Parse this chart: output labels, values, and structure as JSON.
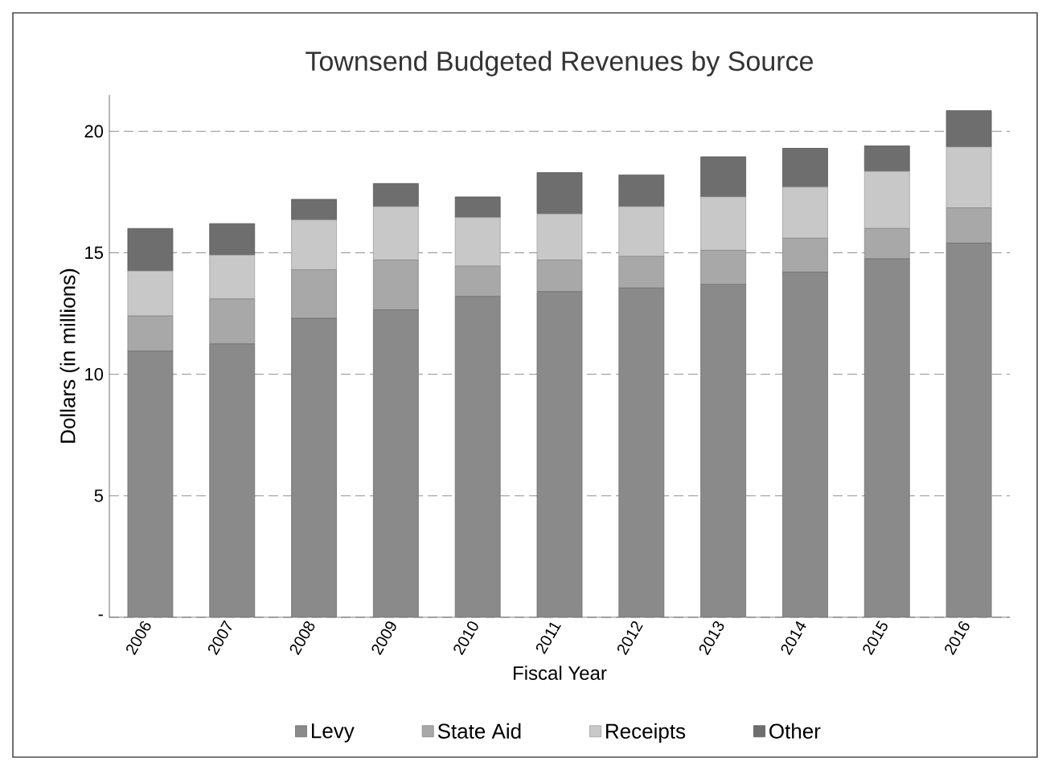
{
  "chart_data": {
    "type": "bar",
    "title": "Townsend Budgeted Revenues by Source",
    "xlabel": "Fiscal Year",
    "ylabel": "Dollars (in millions)",
    "categories": [
      "2006",
      "2007",
      "2008",
      "2009",
      "2010",
      "2011",
      "2012",
      "2013",
      "2014",
      "2015",
      "2016"
    ],
    "stacked": true,
    "series": [
      {
        "name": "Levy",
        "color": "#8a8a8a",
        "values": [
          10.95,
          11.25,
          12.3,
          12.65,
          13.2,
          13.4,
          13.55,
          13.7,
          14.2,
          14.75,
          15.4
        ]
      },
      {
        "name": "State Aid",
        "color": "#a8a8a8",
        "values": [
          1.45,
          1.85,
          2.0,
          2.05,
          1.25,
          1.3,
          1.3,
          1.4,
          1.4,
          1.25,
          1.45
        ]
      },
      {
        "name": "Receipts",
        "color": "#c8c8c8",
        "values": [
          1.85,
          1.8,
          2.05,
          2.2,
          2.0,
          1.9,
          2.05,
          2.2,
          2.1,
          2.35,
          2.5
        ]
      },
      {
        "name": "Other",
        "color": "#6e6e6e",
        "values": [
          1.75,
          1.3,
          0.85,
          0.95,
          0.85,
          1.7,
          1.3,
          1.65,
          1.6,
          1.05,
          1.5
        ]
      }
    ],
    "ylim": [
      0,
      21.5
    ],
    "yticks": [
      {
        "value": 0,
        "label": "-"
      },
      5,
      10,
      15,
      20
    ],
    "grid": "y",
    "legend": "bottom"
  }
}
